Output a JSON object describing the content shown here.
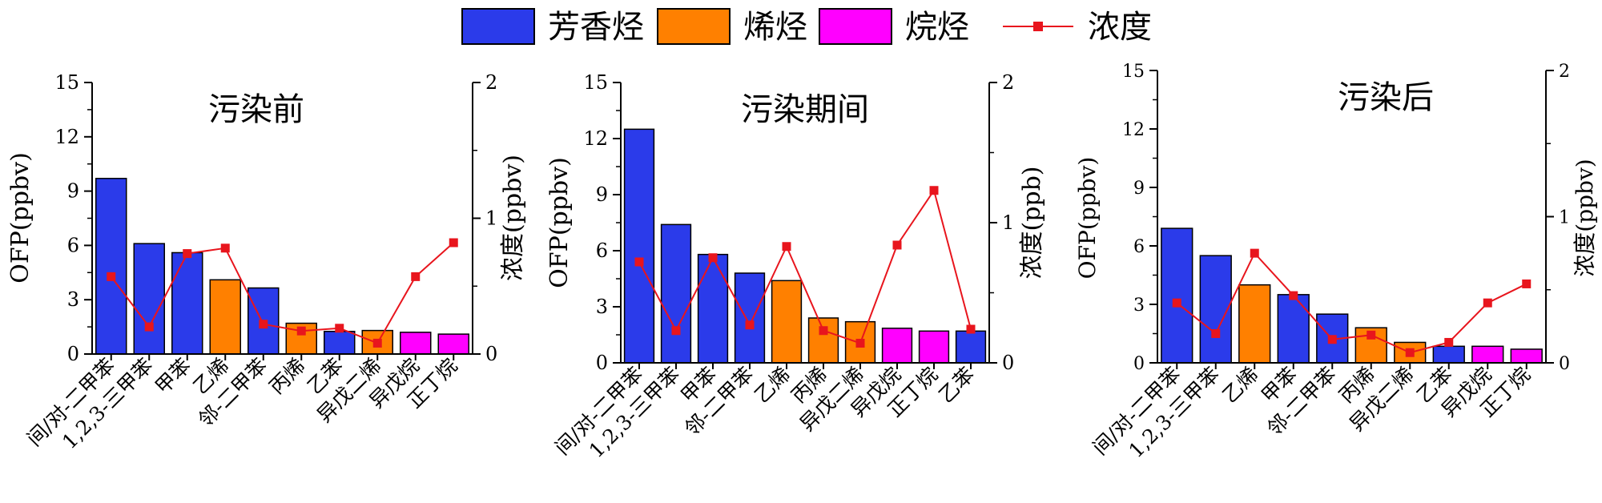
{
  "colors": {
    "aromatic": "#2b3bea",
    "alkene": "#ff8000",
    "alkane": "#ff00ff",
    "line": "#e8151d",
    "marker": "#e8151d"
  },
  "legend": [
    {
      "key": "aromatic",
      "label": "芳香烃",
      "kind": "box"
    },
    {
      "key": "alkene",
      "label": "烯烃",
      "kind": "box"
    },
    {
      "key": "alkane",
      "label": "烷烃",
      "kind": "box"
    },
    {
      "key": "line",
      "label": "浓度",
      "kind": "line"
    }
  ],
  "chart_data": [
    {
      "type": "bar+line",
      "title": "污染前",
      "ylabel": "OFP(ppbv)",
      "y2label": "浓度(ppbv)",
      "ylim": [
        0,
        15
      ],
      "yticks": [
        "0",
        "3",
        "6",
        "9",
        "12",
        "15"
      ],
      "y2lim": [
        0,
        2
      ],
      "y2ticks": [
        "0",
        "1",
        "2"
      ],
      "categories": [
        "间/对-二甲苯",
        "1,2,3-三甲苯",
        "甲苯",
        "乙烯",
        "邻-二甲苯",
        "丙烯",
        "乙苯",
        "异戊二烯",
        "异戊烷",
        "正丁烷"
      ],
      "groups": [
        "aromatic",
        "aromatic",
        "aromatic",
        "alkene",
        "aromatic",
        "alkene",
        "aromatic",
        "alkene",
        "alkane",
        "alkane"
      ],
      "values": [
        9.7,
        6.1,
        5.6,
        4.1,
        3.65,
        1.7,
        1.25,
        1.3,
        1.2,
        1.1
      ],
      "concentration": [
        0.57,
        0.2,
        0.74,
        0.78,
        0.22,
        0.17,
        0.19,
        0.08,
        0.57,
        0.82
      ]
    },
    {
      "type": "bar+line",
      "title": "污染期间",
      "ylabel": "OFP(ppbv)",
      "y2label": "浓度(ppb)",
      "ylim": [
        0,
        15
      ],
      "yticks": [
        "0",
        "3",
        "6",
        "9",
        "12",
        "15"
      ],
      "y2lim": [
        0,
        2
      ],
      "y2ticks": [
        "0",
        "1",
        "2"
      ],
      "categories": [
        "间/对-二甲苯",
        "1,2,3-三甲苯",
        "甲苯",
        "邻-二甲苯",
        "乙烯",
        "丙烯",
        "异戊二烯",
        "异戊烷",
        "正丁烷",
        "乙苯"
      ],
      "groups": [
        "aromatic",
        "aromatic",
        "aromatic",
        "aromatic",
        "alkene",
        "alkene",
        "alkene",
        "alkane",
        "alkane",
        "aromatic"
      ],
      "values": [
        12.5,
        7.4,
        5.8,
        4.8,
        4.4,
        2.4,
        2.2,
        1.85,
        1.7,
        1.7
      ],
      "concentration": [
        0.72,
        0.23,
        0.75,
        0.27,
        0.83,
        0.23,
        0.14,
        0.84,
        1.23,
        0.24
      ]
    },
    {
      "type": "bar+line",
      "title": "污染后",
      "ylabel": "OFP(ppbv)",
      "y2label": "浓度(ppbv)",
      "ylim": [
        0,
        15
      ],
      "yticks": [
        "0",
        "3",
        "6",
        "9",
        "12",
        "15"
      ],
      "y2lim": [
        0,
        2
      ],
      "y2ticks": [
        "0",
        "1",
        "2"
      ],
      "categories": [
        "间/对-二甲苯",
        "1,2,3-三甲苯",
        "乙烯",
        "甲苯",
        "邻-二甲苯",
        "丙烯",
        "异戊二烯",
        "乙苯",
        "异戊烷",
        "正丁烷"
      ],
      "groups": [
        "aromatic",
        "aromatic",
        "alkene",
        "aromatic",
        "aromatic",
        "alkene",
        "alkene",
        "aromatic",
        "alkane",
        "alkane"
      ],
      "values": [
        6.9,
        5.5,
        4.0,
        3.5,
        2.5,
        1.8,
        1.05,
        0.85,
        0.85,
        0.7
      ],
      "concentration": [
        0.41,
        0.2,
        0.75,
        0.46,
        0.16,
        0.19,
        0.07,
        0.14,
        0.41,
        0.54
      ]
    }
  ]
}
